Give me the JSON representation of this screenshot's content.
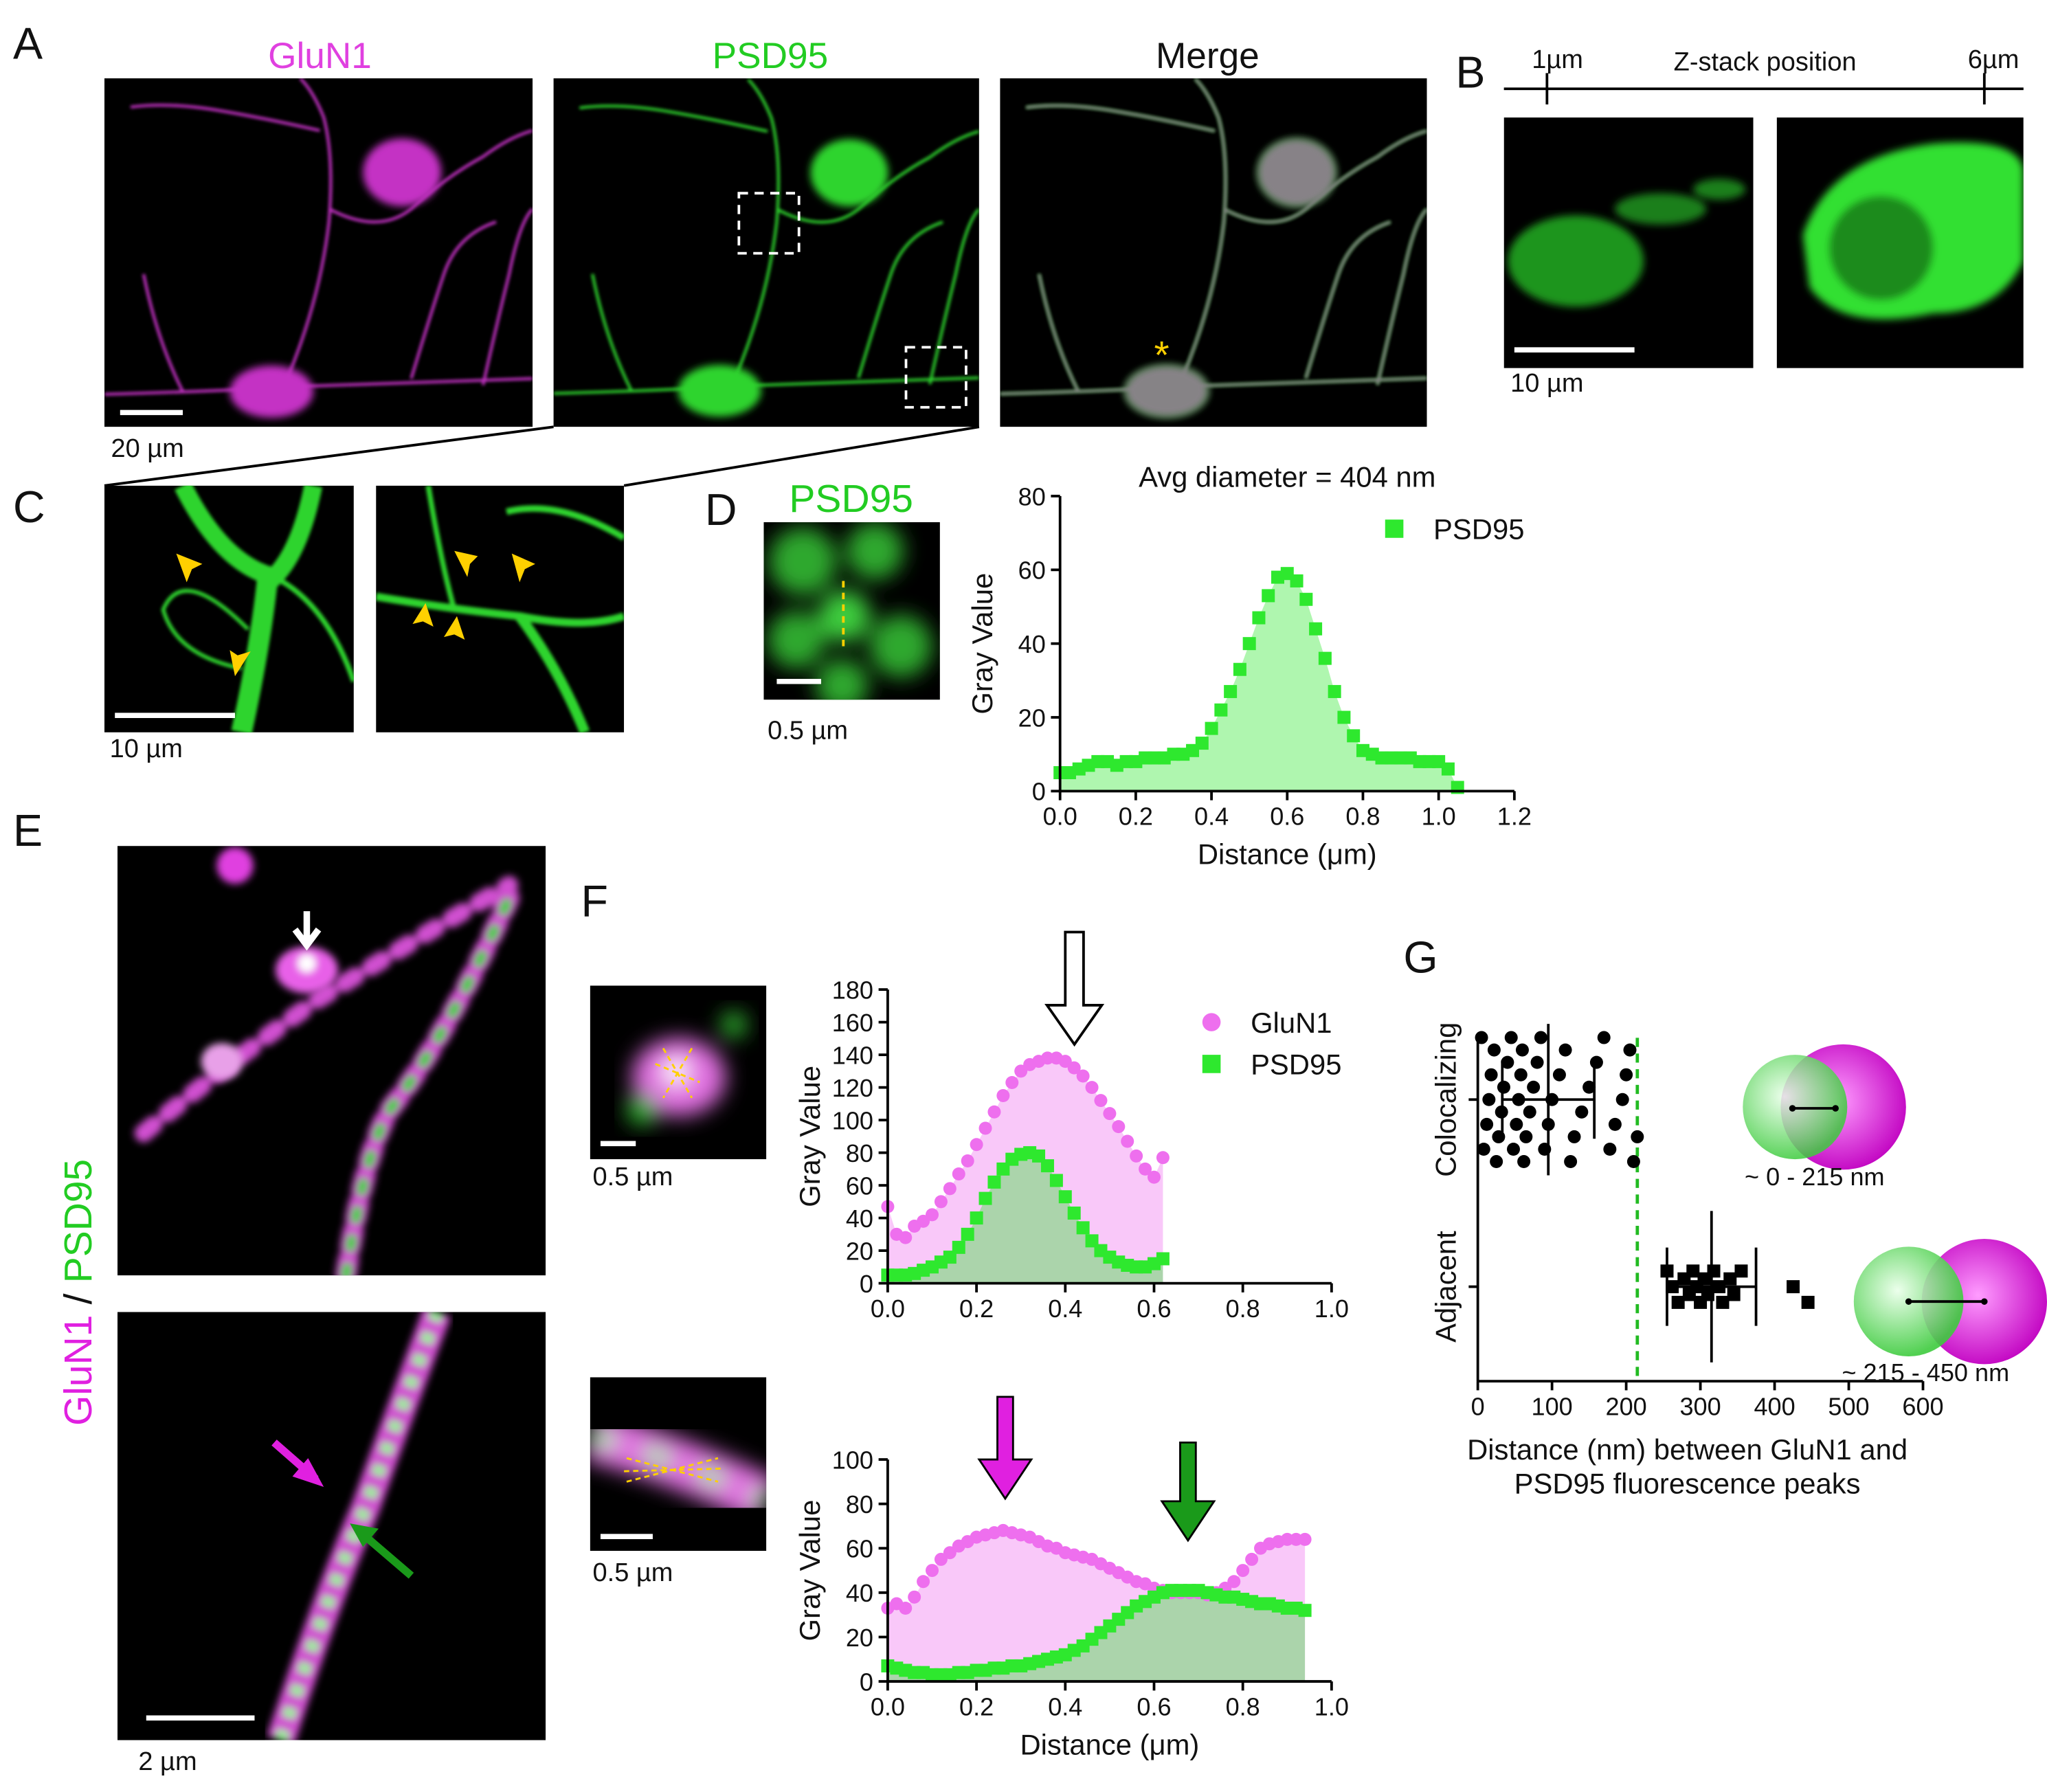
{
  "panels": {
    "A": {
      "letter": "A",
      "titles": [
        "GluN1",
        "PSD95",
        "Merge"
      ],
      "scale_bar": "20 µm"
    },
    "B": {
      "letter": "B",
      "z_start": "1µm",
      "z_label": "Z-stack position",
      "z_end": "6µm",
      "scale_bar": "10 µm"
    },
    "C": {
      "letter": "C",
      "scale_bar": "10 µm"
    },
    "D": {
      "letter": "D",
      "image_title": "PSD95",
      "scale_bar": "0.5 µm"
    },
    "E": {
      "letter": "E",
      "label_parts": [
        "GluN1",
        "/",
        "PSD95"
      ],
      "scale_bar": "2 µm"
    },
    "F": {
      "letter": "F",
      "scale_bars": [
        "0.5 µm",
        "0.5 µm"
      ]
    },
    "G": {
      "letter": "G"
    }
  },
  "chart_data": [
    {
      "type": "line",
      "title": "Avg diameter = 404 nm",
      "x_label": "Distance (μm)",
      "y_label": "Gray Value",
      "area": true,
      "legend": "upper right",
      "x": [
        0,
        0.025,
        0.05,
        0.075,
        0.1,
        0.125,
        0.15,
        0.175,
        0.2,
        0.225,
        0.25,
        0.275,
        0.3,
        0.325,
        0.35,
        0.375,
        0.4,
        0.425,
        0.45,
        0.475,
        0.5,
        0.525,
        0.55,
        0.575,
        0.6,
        0.625,
        0.65,
        0.675,
        0.7,
        0.725,
        0.75,
        0.775,
        0.8,
        0.825,
        0.85,
        0.875,
        0.9,
        0.925,
        0.95,
        0.975,
        1.0,
        1.025,
        1.05
      ],
      "series": [
        {
          "name": "PSD95",
          "color": "#2ee82e",
          "marker": "square",
          "values": [
            5,
            5,
            6,
            7,
            8,
            8,
            7,
            8,
            8,
            9,
            9,
            9,
            10,
            10,
            11,
            13,
            17,
            22,
            27,
            33,
            40,
            47,
            53,
            58,
            59,
            57,
            52,
            44,
            36,
            27,
            20,
            15,
            11,
            10,
            9,
            9,
            9,
            9,
            8,
            8,
            8,
            6,
            1
          ]
        }
      ],
      "xlim": [
        0,
        1.2
      ],
      "xticks": [
        {
          "value": 0,
          "label": "0.0"
        },
        {
          "value": 0.2,
          "label": "0.2"
        },
        {
          "value": 0.4,
          "label": "0.4"
        },
        {
          "value": 0.6,
          "label": "0.6"
        },
        {
          "value": 0.8,
          "label": "0.8"
        },
        {
          "value": 1,
          "label": "1.0"
        },
        {
          "value": 1.2,
          "label": "1.2"
        }
      ],
      "ylim": [
        0,
        80
      ],
      "yticks": [
        0,
        20,
        40,
        60,
        80
      ]
    },
    {
      "type": "line",
      "y_label": "Gray Value",
      "area": true,
      "legend": "upper right",
      "x": [
        0,
        0.02,
        0.04,
        0.06,
        0.08,
        0.1,
        0.12,
        0.14,
        0.16,
        0.18,
        0.2,
        0.22,
        0.24,
        0.26,
        0.28,
        0.3,
        0.32,
        0.34,
        0.36,
        0.38,
        0.4,
        0.42,
        0.44,
        0.46,
        0.48,
        0.5,
        0.52,
        0.54,
        0.56,
        0.58,
        0.6,
        0.62
      ],
      "series": [
        {
          "name": "GluN1",
          "color": "#ee6fee",
          "marker": "circle",
          "values": [
            47,
            30,
            28,
            35,
            38,
            42,
            50,
            58,
            67,
            75,
            85,
            95,
            105,
            115,
            123,
            130,
            134,
            136,
            138,
            138,
            136,
            132,
            127,
            120,
            112,
            104,
            96,
            87,
            78,
            70,
            65,
            77
          ]
        },
        {
          "name": "PSD95",
          "color": "#2ee82e",
          "marker": "square",
          "values": [
            5,
            5,
            5,
            6,
            8,
            10,
            13,
            16,
            22,
            30,
            40,
            52,
            62,
            70,
            76,
            79,
            80,
            78,
            72,
            63,
            53,
            43,
            34,
            26,
            20,
            16,
            13,
            11,
            10,
            10,
            12,
            15
          ]
        }
      ],
      "xlim": [
        0,
        1
      ],
      "xticks": [
        {
          "value": 0,
          "label": "0.0"
        },
        {
          "value": 0.2,
          "label": "0.2"
        },
        {
          "value": 0.4,
          "label": "0.4"
        },
        {
          "value": 0.6,
          "label": "0.6"
        },
        {
          "value": 0.8,
          "label": "0.8"
        },
        {
          "value": 1,
          "label": "1.0"
        }
      ],
      "ylim": [
        0,
        180
      ],
      "yticks": [
        0,
        20,
        40,
        60,
        80,
        100,
        120,
        140,
        160,
        180
      ]
    },
    {
      "type": "line",
      "x_label": "Distance (μm)",
      "y_label": "Gray Value",
      "area": true,
      "x": [
        0,
        0.02,
        0.04,
        0.06,
        0.08,
        0.1,
        0.12,
        0.14,
        0.16,
        0.18,
        0.2,
        0.22,
        0.24,
        0.26,
        0.28,
        0.3,
        0.32,
        0.34,
        0.36,
        0.38,
        0.4,
        0.42,
        0.44,
        0.46,
        0.48,
        0.5,
        0.52,
        0.54,
        0.56,
        0.58,
        0.6,
        0.62,
        0.64,
        0.66,
        0.68,
        0.7,
        0.72,
        0.74,
        0.76,
        0.78,
        0.8,
        0.82,
        0.84,
        0.86,
        0.88,
        0.9,
        0.92,
        0.94
      ],
      "series": [
        {
          "name": "GluN1",
          "color": "#ee6fee",
          "marker": "circle",
          "values": [
            33,
            35,
            33,
            38,
            45,
            50,
            55,
            58,
            61,
            63,
            65,
            66,
            67,
            68,
            67,
            66,
            65,
            63,
            61,
            60,
            58,
            57,
            56,
            55,
            53,
            51,
            49,
            47,
            45,
            44,
            42,
            41,
            40,
            40,
            40,
            40,
            39,
            40,
            42,
            45,
            50,
            55,
            60,
            62,
            63,
            64,
            64,
            64
          ]
        },
        {
          "name": "PSD95",
          "color": "#2ee82e",
          "marker": "square",
          "values": [
            7,
            6,
            5,
            4,
            4,
            3,
            3,
            3,
            4,
            4,
            5,
            5,
            6,
            6,
            7,
            7,
            8,
            9,
            10,
            11,
            12,
            14,
            16,
            19,
            22,
            25,
            28,
            31,
            34,
            36,
            38,
            40,
            41,
            41,
            41,
            41,
            40,
            39,
            38,
            38,
            37,
            36,
            35,
            35,
            34,
            33,
            33,
            32
          ]
        }
      ],
      "xlim": [
        0,
        1
      ],
      "xticks": [
        {
          "value": 0,
          "label": "0.0"
        },
        {
          "value": 0.2,
          "label": "0.2"
        },
        {
          "value": 0.4,
          "label": "0.4"
        },
        {
          "value": 0.6,
          "label": "0.6"
        },
        {
          "value": 0.8,
          "label": "0.8"
        },
        {
          "value": 1,
          "label": "1.0"
        }
      ],
      "ylim": [
        0,
        100
      ],
      "yticks": [
        0,
        20,
        40,
        60,
        80,
        100
      ]
    },
    {
      "type": "strip",
      "categories": [
        "Colocalizing",
        "Adjacent"
      ],
      "series": [
        {
          "marker": "circle",
          "color": "#000000",
          "values": [
            5,
            8,
            12,
            15,
            18,
            22,
            25,
            28,
            32,
            35,
            40,
            45,
            48,
            52,
            55,
            58,
            60,
            62,
            65,
            70,
            75,
            80,
            85,
            90,
            95,
            100,
            110,
            118,
            125,
            130,
            140,
            150,
            160,
            170,
            178,
            185,
            195,
            200,
            205,
            210,
            215
          ],
          "mean": 95,
          "sd": 62
        },
        {
          "marker": "square",
          "color": "#000000",
          "values": [
            255,
            262,
            270,
            278,
            285,
            290,
            295,
            300,
            305,
            310,
            318,
            325,
            330,
            340,
            345,
            355,
            425,
            445
          ],
          "mean": 315,
          "sd": 60
        }
      ],
      "xlim": [
        0,
        600
      ],
      "xticks": [
        0,
        100,
        200,
        300,
        400,
        500,
        600
      ],
      "x_label_lines": [
        "Distance (nm) between GluN1 and",
        "PSD95 fluorescence peaks"
      ],
      "threshold": 215,
      "threshold_color": "#22bb22",
      "annotations": [
        "~ 0 - 215 nm",
        "~ 215 - 450 nm"
      ]
    }
  ]
}
